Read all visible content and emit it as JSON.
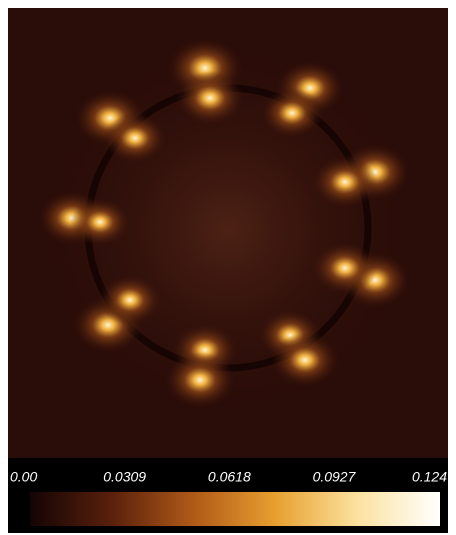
{
  "chart_data": {
    "type": "heatmap",
    "colorbar": {
      "lim": [
        0,
        0.124
      ],
      "ticks": [
        {
          "value": 0,
          "label": "0.00"
        },
        0.0309,
        0.0618,
        0.0927,
        0.124
      ],
      "colors": [
        "#140404",
        "#5a200c",
        "#b05a18",
        "#e8a030",
        "#fbe2a0",
        "#ffffff"
      ]
    }
  }
}
